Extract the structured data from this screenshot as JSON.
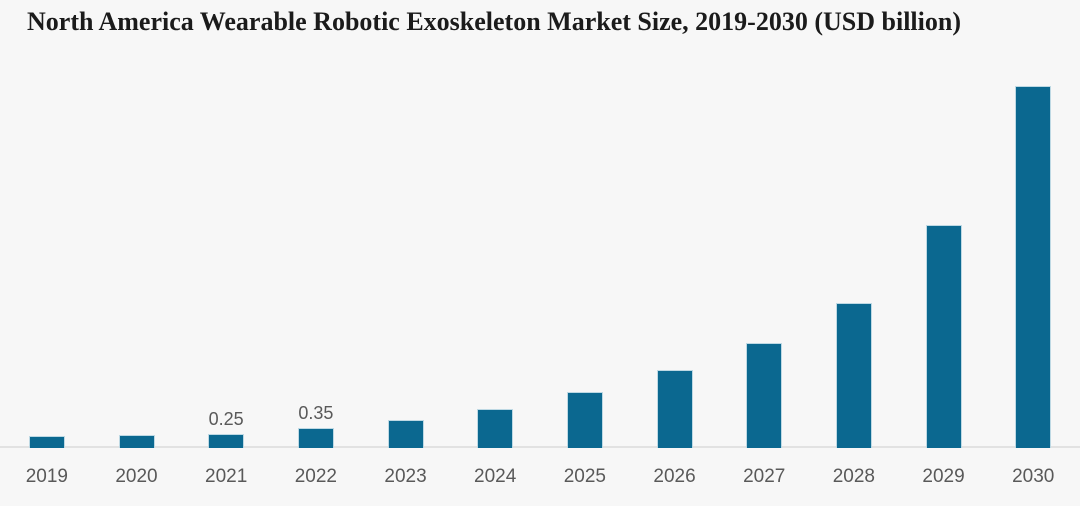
{
  "page": {
    "background": "#f7f7f7"
  },
  "header": {
    "title": "North America Wearable Robotic Exoskeleton Market Size, 2019-2030 (USD billion)"
  },
  "chart_data": {
    "type": "bar",
    "title": "North America Wearable Robotic Exoskeleton Market Size, 2019-2030 (USD billion)",
    "categories": [
      "2019",
      "2020",
      "2021",
      "2022",
      "2023",
      "2024",
      "2025",
      "2026",
      "2027",
      "2028",
      "2029",
      "2030"
    ],
    "values": [
      0.2,
      0.22,
      0.25,
      0.35,
      0.49,
      0.67,
      0.96,
      1.34,
      1.82,
      2.5,
      3.85,
      6.25
    ],
    "data_labels_shown": [
      "",
      "",
      "0.25",
      "0.35",
      "",
      "",
      "",
      "",
      "",
      "",
      "",
      ""
    ],
    "xlabel": "",
    "ylabel": "",
    "ylim": [
      0,
      6.7
    ],
    "grid": false,
    "legend_position": "none",
    "y_axis_visible": false,
    "colors": {
      "bar": "#0b6890",
      "bar_border": "#bed9e4",
      "axis_line": "#e2e2e2",
      "tick_label": "#595959",
      "data_label": "#595959",
      "title": "#1b1b1b",
      "background": "#f7f7f7"
    }
  }
}
